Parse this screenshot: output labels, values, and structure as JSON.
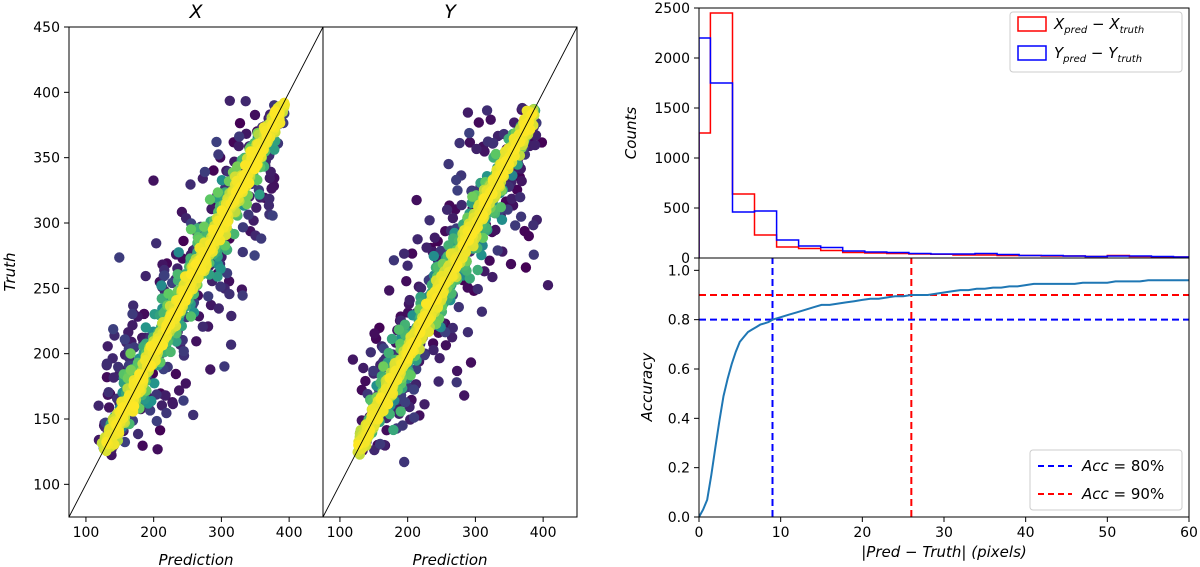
{
  "chart_data": [
    {
      "type": "scatter",
      "panel": "left-X",
      "title": "X",
      "xlabel": "Prediction",
      "ylabel": "Truth",
      "xlim": [
        75,
        450
      ],
      "ylim": [
        75,
        450
      ],
      "xticks": [
        "100",
        "200",
        "300",
        "400"
      ],
      "xtick_values": [
        100,
        200,
        300,
        400
      ],
      "yticks": [
        "100",
        "150",
        "200",
        "250",
        "300",
        "350",
        "400",
        "450"
      ],
      "ytick_values": [
        100,
        150,
        200,
        250,
        300,
        350,
        400,
        450
      ],
      "reference_line": "y = x",
      "colormap": "viridis",
      "data_range": [
        130,
        385
      ],
      "seed": 7
    },
    {
      "type": "scatter",
      "panel": "middle-Y",
      "title": "Y",
      "xlabel": "Prediction",
      "ylabel": "",
      "xlim": [
        75,
        450
      ],
      "ylim": [
        75,
        450
      ],
      "xticks": [
        "100",
        "200",
        "300",
        "400"
      ],
      "xtick_values": [
        100,
        200,
        300,
        400
      ],
      "reference_line": "y = x",
      "colormap": "viridis",
      "data_range": [
        130,
        385
      ],
      "seed": 19
    },
    {
      "type": "histogram",
      "panel": "top-right",
      "xlim": [
        0,
        60
      ],
      "ylim": [
        0,
        2500
      ],
      "ylabel": "Counts",
      "yticks": [
        "0",
        "500",
        "1000",
        "1500",
        "2000",
        "2500"
      ],
      "ytick_values": [
        0,
        500,
        1000,
        1500,
        2000,
        2500
      ],
      "bin_edges": [
        0,
        1.4,
        4.1,
        6.8,
        9.5,
        12.2,
        14.9,
        17.6,
        20.3,
        23,
        25.7,
        28.4,
        31.1,
        33.8,
        36.5,
        39.2,
        41.9,
        44.6,
        47.3,
        50,
        52.7,
        55.4,
        58.1,
        60
      ],
      "series": [
        {
          "name": "X_pred − X_truth",
          "color": "#ff0000",
          "legend": {
            "main": "X",
            "sub1": "pred",
            "op": " − ",
            "main2": "X",
            "sub2": "truth"
          },
          "values": [
            1250,
            2450,
            640,
            230,
            110,
            95,
            75,
            55,
            50,
            45,
            40,
            38,
            30,
            30,
            25,
            25,
            20,
            20,
            15,
            25,
            15,
            10,
            10
          ]
        },
        {
          "name": "Y_pred − Y_truth",
          "color": "#0000ff",
          "legend": {
            "main": "Y",
            "sub1": "pred",
            "op": " − ",
            "main2": "Y",
            "sub2": "truth"
          },
          "values": [
            2200,
            1750,
            460,
            470,
            180,
            120,
            105,
            70,
            60,
            55,
            45,
            40,
            40,
            45,
            35,
            25,
            25,
            20,
            15,
            20,
            20,
            15,
            10
          ]
        }
      ]
    },
    {
      "type": "line",
      "panel": "bottom-right",
      "xlim": [
        0,
        60
      ],
      "ylim": [
        0,
        1.05
      ],
      "xlabel": "|Pred − Truth| (pixels)",
      "ylabel": "Accuracy",
      "xticks": [
        "0",
        "10",
        "20",
        "30",
        "40",
        "50",
        "60"
      ],
      "xtick_values": [
        0,
        10,
        20,
        30,
        40,
        50,
        60
      ],
      "yticks": [
        "0.0",
        "0.2",
        "0.4",
        "0.6",
        "0.8",
        "1.0"
      ],
      "ytick_values": [
        0,
        0.2,
        0.4,
        0.6,
        0.8,
        1.0
      ],
      "series": [
        {
          "name": "accuracy",
          "color": "#1f77b4",
          "x": [
            0,
            0.5,
            1,
            1.5,
            2,
            2.5,
            3,
            3.5,
            4,
            4.5,
            5,
            5.5,
            6,
            6.5,
            7,
            7.5,
            8,
            8.5,
            9,
            10,
            11,
            12,
            13,
            14,
            15,
            16,
            17,
            18,
            19,
            20,
            21,
            22,
            23,
            24,
            25,
            26,
            27,
            28,
            29,
            30,
            31,
            32,
            33,
            34,
            35,
            36,
            37,
            38,
            39,
            40,
            41,
            42,
            43,
            44,
            45,
            46,
            47,
            48,
            49,
            50,
            51,
            52,
            53,
            54,
            55,
            56,
            57,
            58,
            59,
            60
          ],
          "y": [
            0,
            0.03,
            0.07,
            0.17,
            0.28,
            0.39,
            0.49,
            0.56,
            0.62,
            0.67,
            0.71,
            0.73,
            0.75,
            0.76,
            0.77,
            0.78,
            0.785,
            0.79,
            0.8,
            0.81,
            0.82,
            0.83,
            0.84,
            0.85,
            0.86,
            0.86,
            0.865,
            0.87,
            0.875,
            0.88,
            0.885,
            0.885,
            0.89,
            0.895,
            0.895,
            0.9,
            0.9,
            0.9,
            0.905,
            0.91,
            0.915,
            0.92,
            0.92,
            0.925,
            0.925,
            0.93,
            0.93,
            0.935,
            0.935,
            0.94,
            0.945,
            0.945,
            0.945,
            0.945,
            0.945,
            0.945,
            0.95,
            0.95,
            0.95,
            0.95,
            0.955,
            0.955,
            0.955,
            0.955,
            0.96,
            0.96,
            0.96,
            0.96,
            0.96,
            0.96
          ]
        }
      ],
      "thresholds": [
        {
          "label_main": "Acc",
          "label_rest": " = 80%",
          "level": 0.8,
          "x": 9,
          "color": "#0000ff"
        },
        {
          "label_main": "Acc",
          "label_rest": " = 90%",
          "level": 0.9,
          "x": 26,
          "color": "#ff0000"
        }
      ]
    }
  ]
}
